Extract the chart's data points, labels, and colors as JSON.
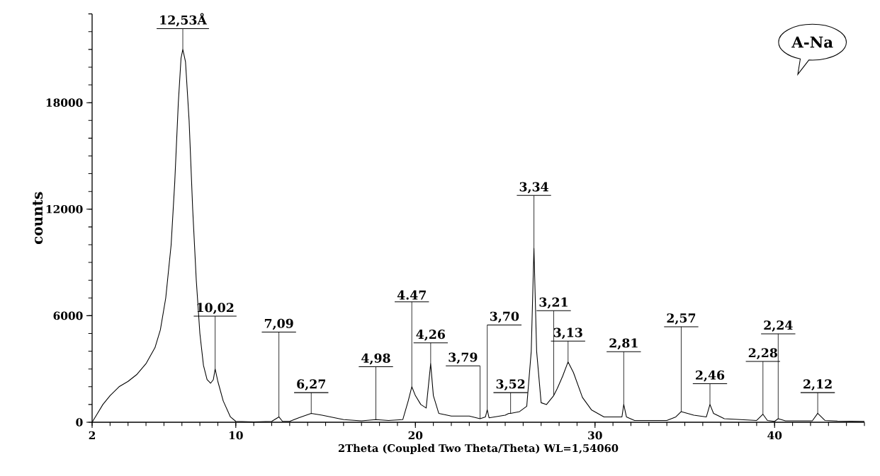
{
  "chart_data": {
    "type": "line",
    "xlabel": "2Theta (Coupled Two Theta/Theta) WL=1,54060",
    "ylabel": "counts",
    "xlim": [
      2,
      45
    ],
    "ylim": [
      0,
      23000
    ],
    "xticks": [
      2,
      10,
      20,
      30,
      40
    ],
    "yticks": [
      0,
      6000,
      12000,
      18000
    ],
    "grid": false,
    "marker": "none",
    "line_style": "solid",
    "series": [
      {
        "color": "#000000",
        "x": [
          2.0,
          2.3,
          2.6,
          3.0,
          3.5,
          4.0,
          4.5,
          5.0,
          5.5,
          5.8,
          6.1,
          6.4,
          6.6,
          6.8,
          6.95,
          7.05,
          7.2,
          7.4,
          7.6,
          7.8,
          8.0,
          8.2,
          8.4,
          8.6,
          8.75,
          8.85,
          9.0,
          9.3,
          9.7,
          10.0,
          11.0,
          12.0,
          12.4,
          12.6,
          13.0,
          13.5,
          14.2,
          14.8,
          16.0,
          17.0,
          17.8,
          18.5,
          19.3,
          19.6,
          19.8,
          20.0,
          20.3,
          20.6,
          20.85,
          21.0,
          21.3,
          22.0,
          23.0,
          23.6,
          23.9,
          24.0,
          24.1,
          25.0,
          25.2,
          25.3,
          25.8,
          26.2,
          26.45,
          26.6,
          26.75,
          27.0,
          27.3,
          27.7,
          27.9,
          28.2,
          28.5,
          28.8,
          29.3,
          29.8,
          30.5,
          31.5,
          31.6,
          31.75,
          32.2,
          34.0,
          34.5,
          34.8,
          35.5,
          36.2,
          36.4,
          36.6,
          37.2,
          39.0,
          39.35,
          39.6,
          40.0,
          40.2,
          40.6,
          42.1,
          42.4,
          42.8,
          43.5,
          45.0
        ],
        "values": [
          0,
          500,
          1000,
          1500,
          2000,
          2300,
          2700,
          3300,
          4200,
          5200,
          7000,
          10000,
          13500,
          18000,
          20500,
          21000,
          20300,
          17000,
          12000,
          8000,
          5000,
          3200,
          2400,
          2200,
          2400,
          3000,
          2300,
          1200,
          300,
          50,
          20,
          50,
          300,
          50,
          50,
          250,
          500,
          400,
          150,
          80,
          150,
          100,
          150,
          1200,
          2000,
          1500,
          1000,
          800,
          3300,
          1500,
          500,
          350,
          350,
          200,
          300,
          700,
          250,
          400,
          500,
          500,
          600,
          900,
          4000,
          9800,
          4000,
          1100,
          1000,
          1500,
          1900,
          2600,
          3400,
          2800,
          1400,
          700,
          300,
          300,
          1000,
          300,
          100,
          100,
          300,
          600,
          400,
          300,
          1000,
          500,
          200,
          100,
          450,
          100,
          50,
          200,
          80,
          80,
          500,
          100,
          70,
          50
        ]
      }
    ],
    "annotations": [
      {
        "text": "12,53Å",
        "x": 7.05,
        "y": 21000
      },
      {
        "text": "10,02",
        "x": 8.85,
        "y": 3000
      },
      {
        "text": "7,09",
        "x": 12.4,
        "y": 300
      },
      {
        "text": "6,27",
        "x": 14.2,
        "y": 500
      },
      {
        "text": "4,98",
        "x": 17.8,
        "y": 150
      },
      {
        "text": "4.47",
        "x": 19.8,
        "y": 2000
      },
      {
        "text": "4,26",
        "x": 20.85,
        "y": 3300
      },
      {
        "text": "3,79",
        "x": 23.6,
        "y": 200
      },
      {
        "text": "3,70",
        "x": 24.0,
        "y": 700
      },
      {
        "text": "3,52",
        "x": 25.3,
        "y": 500
      },
      {
        "text": "3,34",
        "x": 26.6,
        "y": 9800
      },
      {
        "text": "3,21",
        "x": 27.7,
        "y": 1500
      },
      {
        "text": "3,13",
        "x": 28.5,
        "y": 3400
      },
      {
        "text": "2,81",
        "x": 31.6,
        "y": 1000
      },
      {
        "text": "2,57",
        "x": 34.8,
        "y": 600
      },
      {
        "text": "2,46",
        "x": 36.4,
        "y": 1000
      },
      {
        "text": "2,28",
        "x": 39.35,
        "y": 450
      },
      {
        "text": "2,24",
        "x": 40.2,
        "y": 200
      },
      {
        "text": "2,12",
        "x": 42.4,
        "y": 500
      },
      "A-Na"
    ]
  }
}
